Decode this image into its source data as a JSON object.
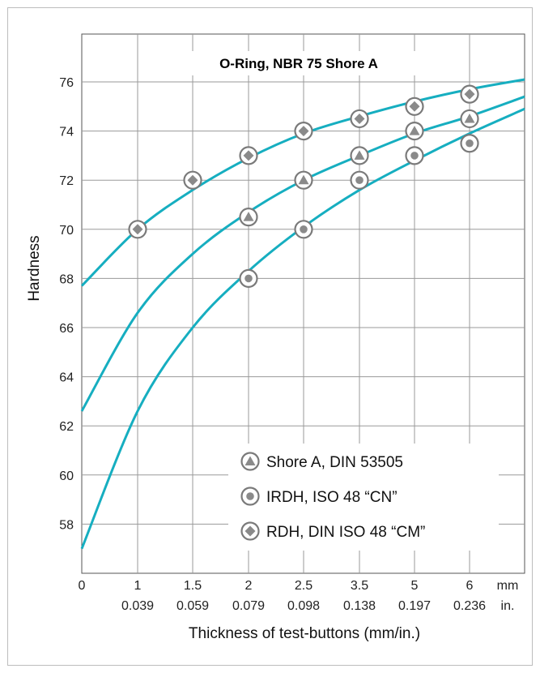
{
  "chart_data": {
    "type": "line",
    "title": "O-Ring, NBR 75 Shore A",
    "ylabel": "Hardness",
    "xlabel": "Thickness of test-buttons (mm/in.)",
    "ylim": [
      56,
      77
    ],
    "x_categories_mm": [
      "0",
      "1",
      "1.5",
      "2",
      "2.5",
      "3.5",
      "5",
      "6"
    ],
    "x_categories_in": [
      "0.039",
      "0.059",
      "0.079",
      "0.098",
      "0.138",
      "0.197",
      "0.236"
    ],
    "x_unit_mm": "mm",
    "x_unit_in": "in.",
    "yticks": [
      58,
      60,
      62,
      64,
      66,
      68,
      70,
      72,
      74,
      76
    ],
    "grid": true,
    "legend_position": "bottom-right",
    "curve_color": "#16aec0",
    "series": [
      {
        "name": "Shore A, DIN 53505",
        "marker": "triangle",
        "points": [
          [
            2,
            70.5
          ],
          [
            2.5,
            72
          ],
          [
            3.5,
            73
          ],
          [
            5,
            74
          ],
          [
            6,
            74.5
          ]
        ],
        "curve_at_categories": [
          62.6,
          66.6,
          69.0,
          70.7,
          72.0,
          73.0,
          73.9,
          74.6
        ],
        "curve_end": 75.4
      },
      {
        "name": "IRDH, ISO 48 “CN”",
        "marker": "circle",
        "points": [
          [
            2,
            68
          ],
          [
            2.5,
            70
          ],
          [
            3.5,
            72
          ],
          [
            5,
            73
          ],
          [
            6,
            73.5
          ]
        ],
        "curve_at_categories": [
          57.0,
          62.6,
          66.0,
          68.3,
          70.1,
          71.6,
          72.8,
          73.9
        ],
        "curve_end": 74.9
      },
      {
        "name": "RDH, DIN ISO 48 “CM”",
        "marker": "diamond",
        "points": [
          [
            1,
            70
          ],
          [
            1.5,
            72
          ],
          [
            2,
            73
          ],
          [
            2.5,
            74
          ],
          [
            3.5,
            74.5
          ],
          [
            5,
            75
          ],
          [
            6,
            75.5
          ]
        ],
        "curve_at_categories": [
          67.7,
          70.0,
          71.6,
          72.9,
          73.9,
          74.6,
          75.2,
          75.7
        ],
        "curve_end": 76.1
      }
    ]
  }
}
